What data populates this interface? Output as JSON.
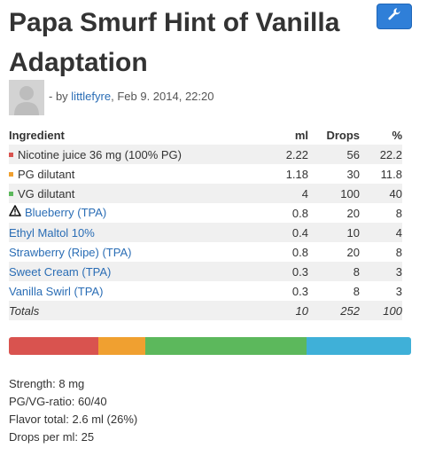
{
  "recipe": {
    "title": "Papa Smurf Hint of Vanilla Adaptation",
    "edit_icon": "wrench-icon",
    "byline_prefix": "- by ",
    "author": "littlefyre",
    "date_sep": ", ",
    "date": "Feb 9. 2014, 22:20"
  },
  "table": {
    "headers": {
      "ingredient": "Ingredient",
      "ml": "ml",
      "drops": "Drops",
      "pct": "%"
    },
    "rows": [
      {
        "name": "Nicotine juice 36 mg (100% PG)",
        "ml": "2.22",
        "drops": "56",
        "pct": "22.2",
        "swatch": "#d9534f"
      },
      {
        "name": "PG dilutant",
        "ml": "1.18",
        "drops": "30",
        "pct": "11.8",
        "swatch": "#f0a030"
      },
      {
        "name": "VG dilutant",
        "ml": "4",
        "drops": "100",
        "pct": "40",
        "swatch": "#5cb85c"
      },
      {
        "name": "Blueberry (TPA)",
        "ml": "0.8",
        "drops": "20",
        "pct": "8",
        "warning_icon": "warning-icon"
      },
      {
        "name": "Ethyl Maltol 10%",
        "ml": "0.4",
        "drops": "10",
        "pct": "4"
      },
      {
        "name": "Strawberry (Ripe) (TPA)",
        "ml": "0.8",
        "drops": "20",
        "pct": "8"
      },
      {
        "name": "Sweet Cream (TPA)",
        "ml": "0.3",
        "drops": "8",
        "pct": "3"
      },
      {
        "name": "Vanilla Swirl (TPA)",
        "ml": "0.3",
        "drops": "8",
        "pct": "3"
      }
    ],
    "totals": {
      "label": "Totals",
      "ml": "10",
      "drops": "252",
      "pct": "100"
    }
  },
  "bar_segments": [
    {
      "name": "nicotine",
      "percent": 22.2,
      "color": "#d9534f"
    },
    {
      "name": "pg",
      "percent": 11.8,
      "color": "#f0a030"
    },
    {
      "name": "vg",
      "percent": 40,
      "color": "#5cb85c"
    },
    {
      "name": "flavor",
      "percent": 26,
      "color": "#3fb0d8"
    }
  ],
  "stats": {
    "strength": "Strength: 8 mg",
    "ratio": "PG/VG-ratio: 60/40",
    "flavor_total": "Flavor total: 2.6 ml (26%)",
    "drops_per_ml": "Drops per ml: 25"
  },
  "colors": {
    "link": "#2a6db5",
    "button": "#2f7fd8"
  }
}
